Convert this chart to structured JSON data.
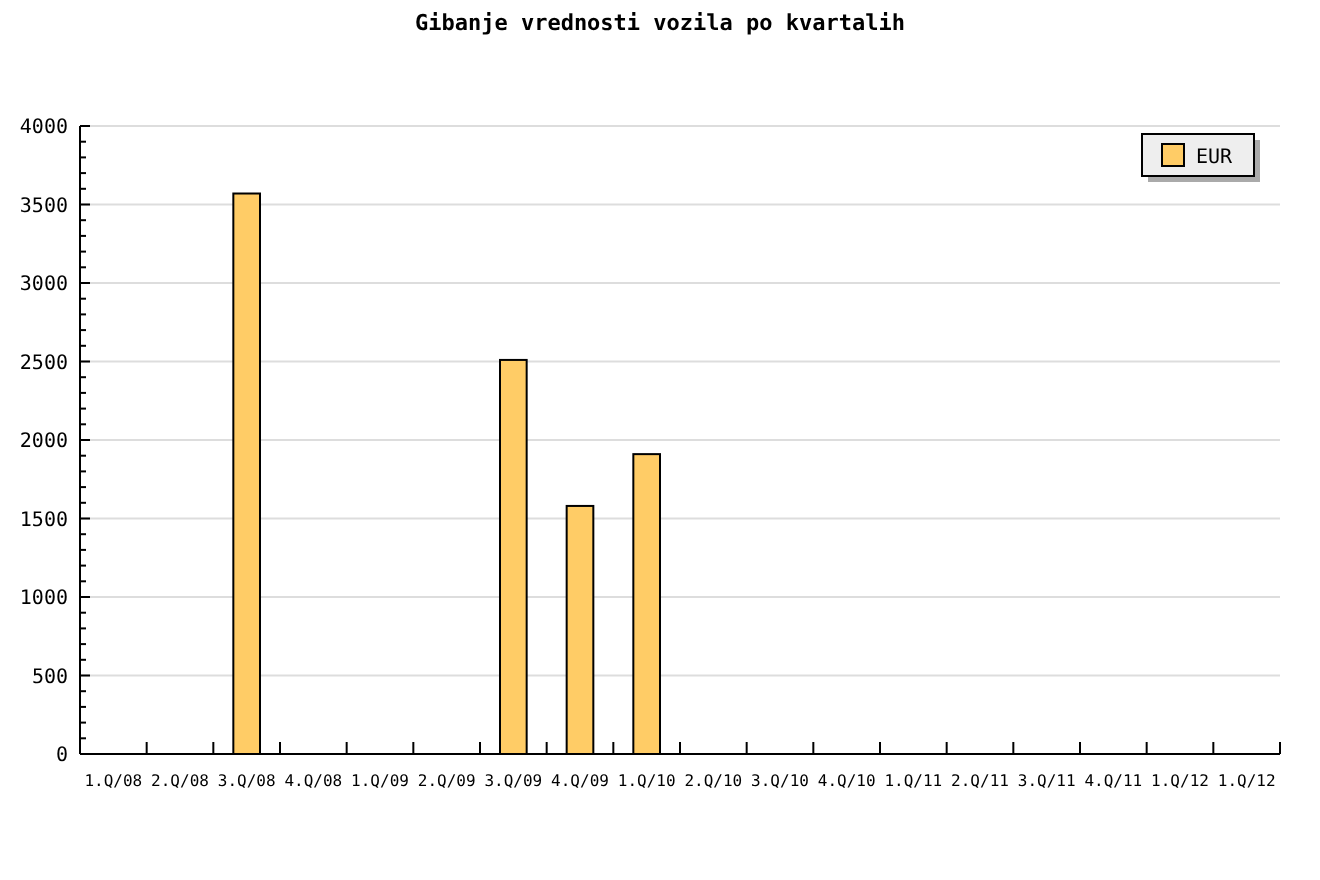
{
  "chart_data": {
    "type": "bar",
    "title": "Gibanje vrednosti vozila po kvartalih",
    "categories": [
      "1.Q/08",
      "2.Q/08",
      "3.Q/08",
      "4.Q/08",
      "1.Q/09",
      "2.Q/09",
      "3.Q/09",
      "4.Q/09",
      "1.Q/10",
      "2.Q/10",
      "3.Q/10",
      "4.Q/10",
      "1.Q/11",
      "2.Q/11",
      "3.Q/11",
      "4.Q/11",
      "1.Q/12",
      "1.Q/12"
    ],
    "series": [
      {
        "name": "EUR",
        "color": "#ffcc66",
        "values": [
          null,
          null,
          3570,
          null,
          null,
          null,
          2510,
          1580,
          1910,
          null,
          null,
          null,
          null,
          null,
          null,
          null,
          null,
          null
        ]
      }
    ],
    "ylim": [
      0,
      4000
    ],
    "yticks": [
      0,
      {
        "value": 100,
        "label": null
      },
      {
        "value": 200,
        "label": null
      },
      {
        "value": 300,
        "label": null
      },
      {
        "value": 400,
        "label": null
      },
      500,
      {
        "value": 600,
        "label": null
      },
      {
        "value": 700,
        "label": null
      },
      {
        "value": 800,
        "label": null
      },
      {
        "value": 900,
        "label": null
      },
      1000,
      {
        "value": 1100,
        "label": null
      },
      {
        "value": 1200,
        "label": null
      },
      {
        "value": 1300,
        "label": null
      },
      {
        "value": 1400,
        "label": null
      },
      1500,
      {
        "value": 1600,
        "label": null
      },
      {
        "value": 1700,
        "label": null
      },
      {
        "value": 1800,
        "label": null
      },
      {
        "value": 1900,
        "label": null
      },
      2000,
      {
        "value": 2100,
        "label": null
      },
      {
        "value": 2200,
        "label": null
      },
      {
        "value": 2300,
        "label": null
      },
      {
        "value": 2400,
        "label": null
      },
      2500,
      {
        "value": 2600,
        "label": null
      },
      {
        "value": 2700,
        "label": null
      },
      {
        "value": 2800,
        "label": null
      },
      {
        "value": 2900,
        "label": null
      },
      3000,
      {
        "value": 3100,
        "label": null
      },
      {
        "value": 3200,
        "label": null
      },
      {
        "value": 3300,
        "label": null
      },
      {
        "value": 3400,
        "label": null
      },
      3500,
      {
        "value": 3600,
        "label": null
      },
      {
        "value": 3700,
        "label": null
      },
      {
        "value": 3800,
        "label": null
      },
      {
        "value": 3900,
        "label": null
      },
      4000
    ],
    "grid": "y",
    "legend": "top right"
  }
}
